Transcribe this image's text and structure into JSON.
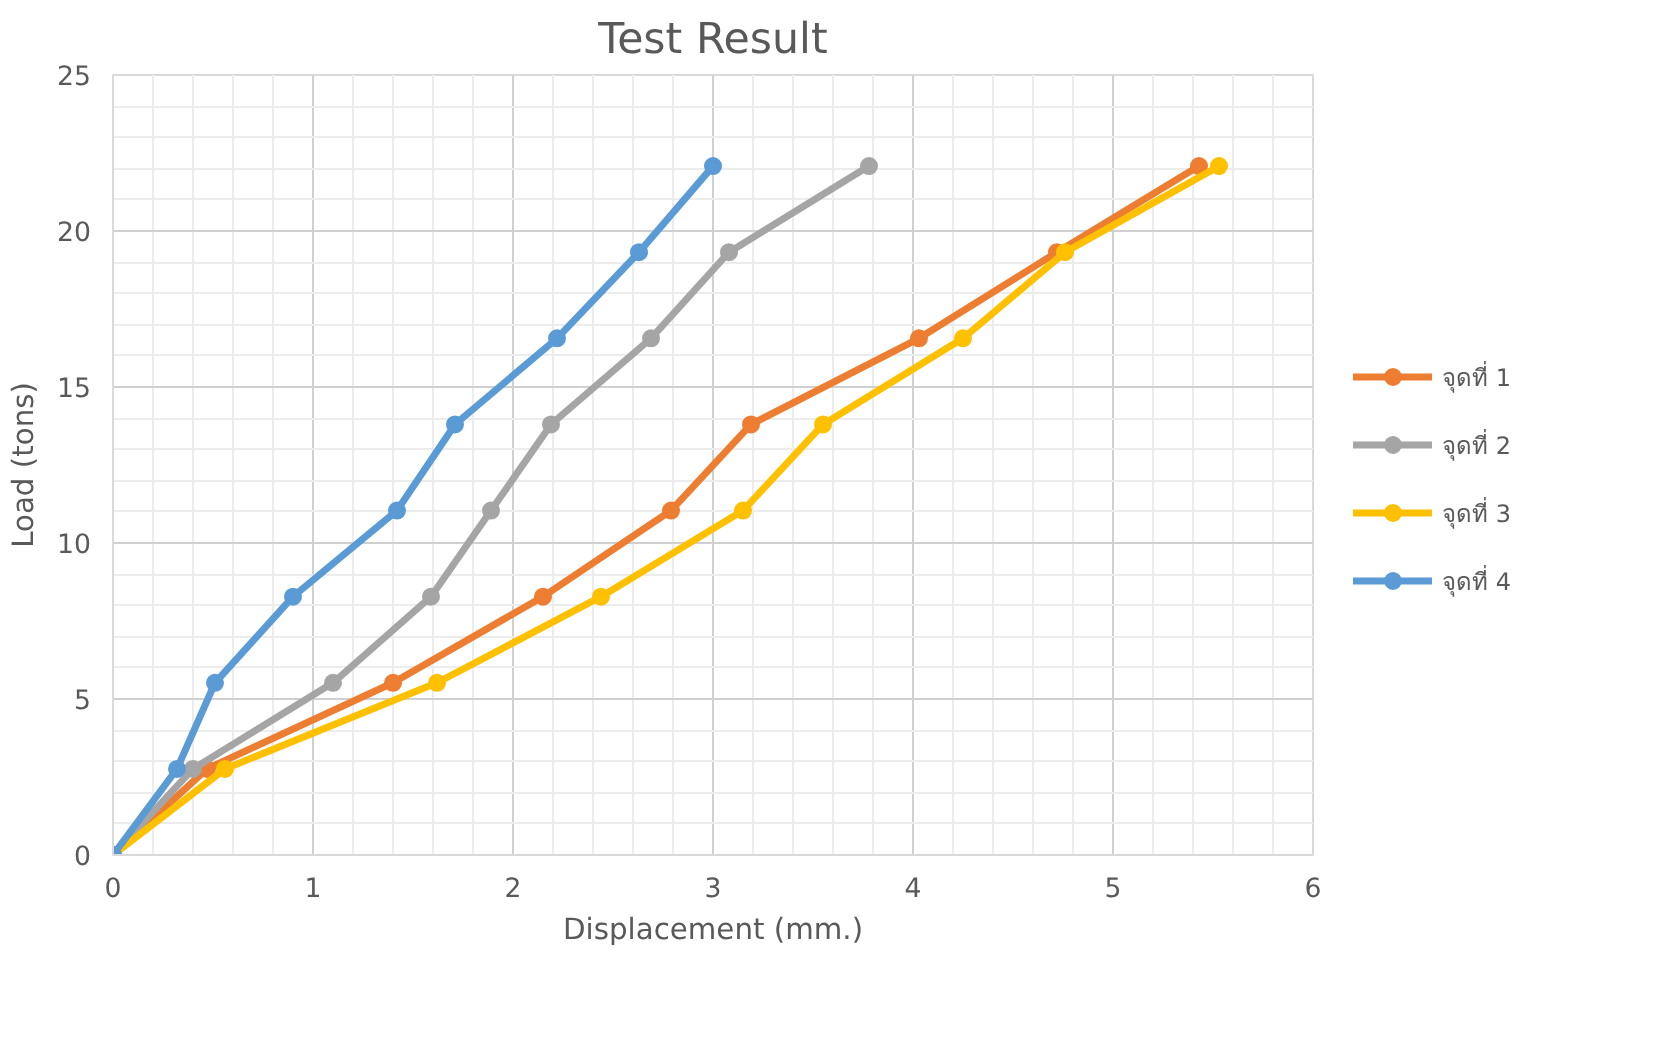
{
  "chart_data": {
    "type": "line",
    "title": "Test Result",
    "xlabel": "Displacement (mm.)",
    "ylabel": "Load (tons)",
    "xlim": [
      0,
      6
    ],
    "xticks": [
      0,
      1,
      2,
      3,
      4,
      5,
      6
    ],
    "ylim": [
      0,
      25
    ],
    "yticks": [
      0,
      5,
      10,
      15,
      20,
      25
    ],
    "grid": true,
    "legend": "right",
    "marker": "circle",
    "line_style": "solid",
    "series": [
      {
        "name": "จุดที่ 1",
        "color": "#ed7d31",
        "x": [
          0,
          0.47,
          1.4,
          2.15,
          2.79,
          3.19,
          4.03,
          4.72,
          5.43
        ],
        "values": [
          0,
          2.76,
          5.52,
          8.28,
          11.04,
          13.8,
          16.56,
          19.32,
          22.08
        ]
      },
      {
        "name": "จุดที่ 2",
        "color": "#a5a5a5",
        "x": [
          0,
          0.4,
          1.1,
          1.59,
          1.89,
          2.19,
          2.69,
          3.08,
          3.78
        ],
        "values": [
          0,
          2.76,
          5.52,
          8.28,
          11.04,
          13.8,
          16.56,
          19.32,
          22.08
        ]
      },
      {
        "name": "จุดที่ 3",
        "color": "#ffc000",
        "x": [
          0,
          0.56,
          1.62,
          2.44,
          3.15,
          3.55,
          4.25,
          4.76,
          5.53
        ],
        "values": [
          0,
          2.76,
          5.52,
          8.28,
          11.04,
          13.8,
          16.56,
          19.32,
          22.08
        ]
      },
      {
        "name": "จุดที่ 4",
        "color": "#5b9bd5",
        "x": [
          0,
          0.32,
          0.51,
          0.9,
          1.42,
          1.71,
          2.22,
          2.63,
          3.0
        ],
        "values": [
          0,
          2.76,
          5.52,
          8.28,
          11.04,
          13.8,
          16.56,
          19.32,
          22.08
        ]
      }
    ]
  }
}
